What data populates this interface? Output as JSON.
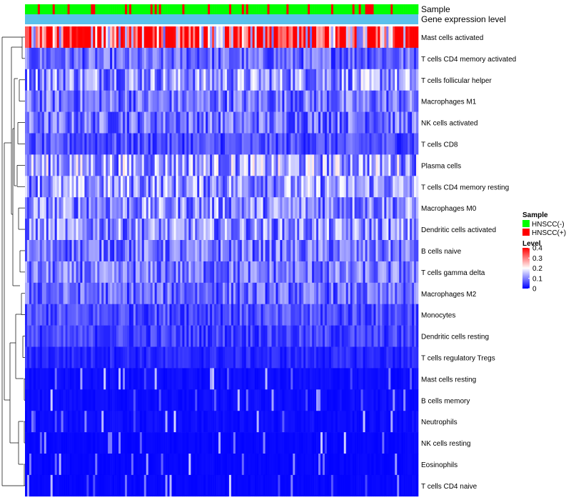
{
  "chart_data": {
    "type": "heatmap",
    "annotation_rows": [
      "Sample",
      "Gene expression level"
    ],
    "rows": [
      "Mast cells activated",
      "T cells CD4 memory activated",
      "T cells follicular helper",
      "Macrophages M1",
      "NK cells activated",
      "T cells CD8",
      "Plasma cells",
      "T cells CD4 memory resting",
      "Macrophages M0",
      "Dendritic cells activated",
      "B cells naive",
      "T cells gamma delta",
      "Macrophages M2",
      "Monocytes",
      "Dendritic cells resting",
      "T cells regulatory  Tregs",
      "Mast cells resting",
      "B cells memory",
      "Neutrophils",
      "NK cells resting",
      "Eosinophils",
      "T cells CD4 naive"
    ],
    "row_mean_levels": [
      0.32,
      0.08,
      0.12,
      0.09,
      0.09,
      0.06,
      0.13,
      0.12,
      0.11,
      0.11,
      0.09,
      0.09,
      0.08,
      0.06,
      0.05,
      0.03,
      0.01,
      0.01,
      0.01,
      0.005,
      0.005,
      0.005
    ],
    "n_samples": 185,
    "color_scale": {
      "min": 0,
      "max": 0.4,
      "colors": [
        "#0000ff",
        "#ffffff",
        "#ff0000"
      ]
    },
    "legend": {
      "sample_title": "Sample",
      "sample_items": [
        {
          "label": "HNSCC(-)",
          "color": "#00ff00"
        },
        {
          "label": "HNSCC(+)",
          "color": "#ff0000"
        }
      ],
      "level_title": "Level",
      "level_ticks": [
        "0.4",
        "0.3",
        "0.2",
        "0.1",
        "0"
      ]
    },
    "gene_expression_bar_color": "#5bc0eb"
  }
}
